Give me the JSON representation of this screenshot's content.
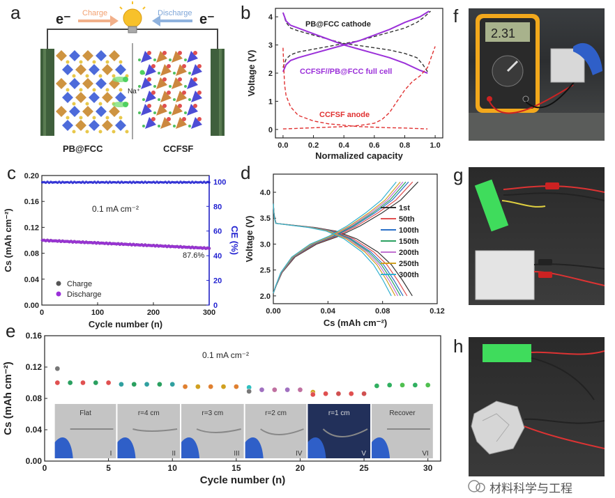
{
  "panels": {
    "a": {
      "letter": "a",
      "electron_left": "e⁻",
      "electron_right": "e⁻",
      "charge_label": "Charge",
      "discharge_label": "Discharge",
      "ion_label": "Na⁺",
      "left_material": "PB@FCC",
      "right_material": "CCFSF",
      "colors": {
        "charge_arrow": "#f2b08a",
        "discharge_arrow": "#8fb2de",
        "electrode": "#3f5f3c"
      }
    },
    "b": {
      "letter": "b",
      "label_cathode": "PB@FCC cathode",
      "label_full": "CCFSF//PB@FCC full cell",
      "label_anode": "CCFSF anode",
      "colors": {
        "cathode": "#333333",
        "full": "#9b30d9",
        "anode": "#e03030"
      }
    },
    "c": {
      "letter": "c",
      "current_label": "0.1 mA cm⁻²",
      "retention_label": "87.6%",
      "colors": {
        "charge": "#555555",
        "discharge": "#9b30d9",
        "ce": "#1f1fd0"
      }
    },
    "d": {
      "letter": "d"
    },
    "e": {
      "letter": "e",
      "current_label": "0.1 mA cm⁻²",
      "insets": [
        {
          "label": "Flat",
          "roman": "I"
        },
        {
          "label": "r=4 cm",
          "roman": "II"
        },
        {
          "label": "r=3 cm",
          "roman": "III"
        },
        {
          "label": "r=2 cm",
          "roman": "IV"
        },
        {
          "label": "r=1 cm",
          "roman": "V"
        },
        {
          "label": "Recover",
          "roman": "VI"
        }
      ]
    },
    "f": {
      "letter": "f",
      "multimeter_reading": "2.31"
    },
    "g": {
      "letter": "g"
    },
    "h": {
      "letter": "h"
    }
  },
  "watermark": "材料科学与工程",
  "chart_data": [
    {
      "id": "b",
      "type": "line",
      "xlabel": "Normalized capacity",
      "ylabel": "Voltage (V)",
      "xlim": [
        -0.05,
        1.05
      ],
      "ylim": [
        -0.3,
        4.3
      ],
      "xticks": [
        "0.0",
        "0.2",
        "0.4",
        "0.6",
        "0.8",
        "1.0"
      ],
      "yticks": [
        "0",
        "1",
        "2",
        "3",
        "4"
      ],
      "series": [
        {
          "name": "PB@FCC cathode",
          "style": "dashed",
          "color": "#333333",
          "x": [
            0.0,
            0.02,
            0.05,
            0.1,
            0.2,
            0.3,
            0.4,
            0.5,
            0.6,
            0.7,
            0.8,
            0.88,
            0.92,
            0.95
          ],
          "y": [
            4.15,
            3.8,
            3.6,
            3.5,
            3.35,
            3.2,
            3.05,
            2.98,
            2.9,
            2.82,
            2.7,
            2.55,
            2.3,
            2.05
          ]
        },
        {
          "name": "PB@FCC cathode charge",
          "style": "dashed",
          "color": "#333333",
          "x": [
            0.0,
            0.02,
            0.05,
            0.1,
            0.2,
            0.3,
            0.4,
            0.5,
            0.6,
            0.7,
            0.8,
            0.88,
            0.93,
            0.97
          ],
          "y": [
            2.2,
            2.5,
            2.65,
            2.75,
            2.85,
            2.95,
            3.05,
            3.15,
            3.3,
            3.45,
            3.6,
            3.8,
            4.0,
            4.2
          ]
        },
        {
          "name": "CCFSF//PB@FCC full cell",
          "style": "solid",
          "color": "#9b30d9",
          "x": [
            0.0,
            0.02,
            0.05,
            0.1,
            0.2,
            0.3,
            0.4,
            0.5,
            0.6,
            0.7,
            0.8,
            0.9,
            0.95
          ],
          "y": [
            4.15,
            3.85,
            3.7,
            3.6,
            3.4,
            3.2,
            3.0,
            2.85,
            2.7,
            2.55,
            2.35,
            2.1,
            2.0
          ]
        },
        {
          "name": "CCFSF//PB@FCC full cell charge",
          "style": "solid",
          "color": "#9b30d9",
          "x": [
            0.0,
            0.02,
            0.05,
            0.1,
            0.2,
            0.3,
            0.4,
            0.5,
            0.6,
            0.7,
            0.8,
            0.9,
            0.96
          ],
          "y": [
            2.05,
            2.3,
            2.45,
            2.55,
            2.7,
            2.85,
            3.0,
            3.15,
            3.35,
            3.55,
            3.8,
            4.0,
            4.2
          ]
        },
        {
          "name": "CCFSF anode",
          "style": "dashed",
          "color": "#e03030",
          "x": [
            0.0,
            0.005,
            0.01,
            0.02,
            0.05,
            0.1,
            0.2,
            0.3,
            0.4,
            0.5,
            0.6,
            0.7,
            0.8,
            0.9,
            0.95
          ],
          "y": [
            2.9,
            2.2,
            1.6,
            1.2,
            0.8,
            0.5,
            0.3,
            0.2,
            0.15,
            0.1,
            0.08,
            0.06,
            0.05,
            0.03,
            0.02
          ]
        },
        {
          "name": "CCFSF anode charge",
          "style": "dashed",
          "color": "#e03030",
          "x": [
            0.0,
            0.1,
            0.2,
            0.3,
            0.4,
            0.5,
            0.6,
            0.65,
            0.7,
            0.75,
            0.8,
            0.85,
            0.9,
            0.95,
            1.0
          ],
          "y": [
            0.02,
            0.04,
            0.06,
            0.08,
            0.1,
            0.14,
            0.22,
            0.35,
            0.6,
            1.0,
            1.4,
            1.7,
            1.9,
            2.2,
            2.95
          ]
        }
      ]
    },
    {
      "id": "c",
      "type": "scatter",
      "xlabel": "Cycle number (n)",
      "ylabel": "Cs (mAh cm⁻²)",
      "y2label": "CE (%)",
      "xlim": [
        0,
        300
      ],
      "ylim": [
        0,
        0.2
      ],
      "y2lim": [
        0,
        105
      ],
      "xticks": [
        "0",
        "100",
        "200",
        "300"
      ],
      "yticks": [
        "0.00",
        "0.04",
        "0.08",
        "0.12",
        "0.16",
        "0.20"
      ],
      "y2ticks": [
        "0",
        "20",
        "40",
        "60",
        "80",
        "100"
      ],
      "legend": [
        "Charge",
        "Discharge"
      ],
      "series": [
        {
          "name": "Charge",
          "color": "#555555",
          "x_start": 1,
          "x_end": 300,
          "y_start": 0.1,
          "y_end": 0.0877
        },
        {
          "name": "Discharge",
          "color": "#9b30d9",
          "x_start": 1,
          "x_end": 300,
          "y_start": 0.1,
          "y_end": 0.0876
        },
        {
          "name": "CE",
          "color": "#1f1fd0",
          "x_start": 1,
          "x_end": 300,
          "y_start": 99.5,
          "y_end": 99.5
        }
      ]
    },
    {
      "id": "d",
      "type": "line",
      "xlabel": "Cs (mAh cm⁻²)",
      "ylabel": "Voltage (V)",
      "xlim": [
        0,
        0.12
      ],
      "ylim": [
        1.85,
        4.35
      ],
      "xticks": [
        "0.00",
        "0.04",
        "0.08",
        "0.12"
      ],
      "yticks": [
        "2.0",
        "2.5",
        "3.0",
        "3.5",
        "4.0"
      ],
      "series": [
        {
          "name": "1st",
          "color": "#333333",
          "capacity": 0.106
        },
        {
          "name": "50th",
          "color": "#e05050",
          "capacity": 0.102
        },
        {
          "name": "100th",
          "color": "#2a70c8",
          "capacity": 0.099
        },
        {
          "name": "150th",
          "color": "#2aa060",
          "capacity": 0.097
        },
        {
          "name": "200th",
          "color": "#c070d0",
          "capacity": 0.095
        },
        {
          "name": "250th",
          "color": "#d0a020",
          "capacity": 0.093
        },
        {
          "name": "300th",
          "color": "#30b0d0",
          "capacity": 0.09
        }
      ]
    },
    {
      "id": "e",
      "type": "scatter",
      "xlabel": "Cycle number (n)",
      "ylabel": "Cs (mAh cm⁻²)",
      "xlim": [
        0,
        31
      ],
      "ylim": [
        0,
        0.16
      ],
      "xticks": [
        "0",
        "5",
        "10",
        "15",
        "20",
        "25",
        "30"
      ],
      "yticks": [
        "0.00",
        "0.04",
        "0.08",
        "0.12",
        "0.16"
      ],
      "points": [
        {
          "x": 1,
          "y": 0.118,
          "color": "#777777"
        },
        {
          "x": 1,
          "y": 0.1,
          "color": "#e05050"
        },
        {
          "x": 2,
          "y": 0.1,
          "color": "#2aa060"
        },
        {
          "x": 3,
          "y": 0.1,
          "color": "#e05050"
        },
        {
          "x": 4,
          "y": 0.1,
          "color": "#2aa060"
        },
        {
          "x": 5,
          "y": 0.1,
          "color": "#e05050"
        },
        {
          "x": 6,
          "y": 0.098,
          "color": "#30a0a0"
        },
        {
          "x": 7,
          "y": 0.098,
          "color": "#2aa060"
        },
        {
          "x": 8,
          "y": 0.098,
          "color": "#30a0a0"
        },
        {
          "x": 9,
          "y": 0.098,
          "color": "#2aa060"
        },
        {
          "x": 10,
          "y": 0.098,
          "color": "#30a0a0"
        },
        {
          "x": 11,
          "y": 0.095,
          "color": "#e08030"
        },
        {
          "x": 12,
          "y": 0.095,
          "color": "#d0a020"
        },
        {
          "x": 13,
          "y": 0.095,
          "color": "#e08030"
        },
        {
          "x": 14,
          "y": 0.095,
          "color": "#d0a020"
        },
        {
          "x": 15,
          "y": 0.095,
          "color": "#e08030"
        },
        {
          "x": 16,
          "y": 0.094,
          "color": "#30c0c0"
        },
        {
          "x": 16,
          "y": 0.089,
          "color": "#777777"
        },
        {
          "x": 17,
          "y": 0.091,
          "color": "#a070c0"
        },
        {
          "x": 18,
          "y": 0.091,
          "color": "#c070a0"
        },
        {
          "x": 19,
          "y": 0.091,
          "color": "#a070c0"
        },
        {
          "x": 20,
          "y": 0.091,
          "color": "#c070a0"
        },
        {
          "x": 21,
          "y": 0.088,
          "color": "#d0a020"
        },
        {
          "x": 21,
          "y": 0.085,
          "color": "#e05050"
        },
        {
          "x": 22,
          "y": 0.086,
          "color": "#e05050"
        },
        {
          "x": 23,
          "y": 0.086,
          "color": "#d05050"
        },
        {
          "x": 24,
          "y": 0.086,
          "color": "#e05050"
        },
        {
          "x": 25,
          "y": 0.086,
          "color": "#d05050"
        },
        {
          "x": 26,
          "y": 0.096,
          "color": "#30b060"
        },
        {
          "x": 27,
          "y": 0.097,
          "color": "#30b060"
        },
        {
          "x": 28,
          "y": 0.097,
          "color": "#50c050"
        },
        {
          "x": 29,
          "y": 0.097,
          "color": "#30b060"
        },
        {
          "x": 30,
          "y": 0.097,
          "color": "#50c050"
        }
      ]
    }
  ]
}
